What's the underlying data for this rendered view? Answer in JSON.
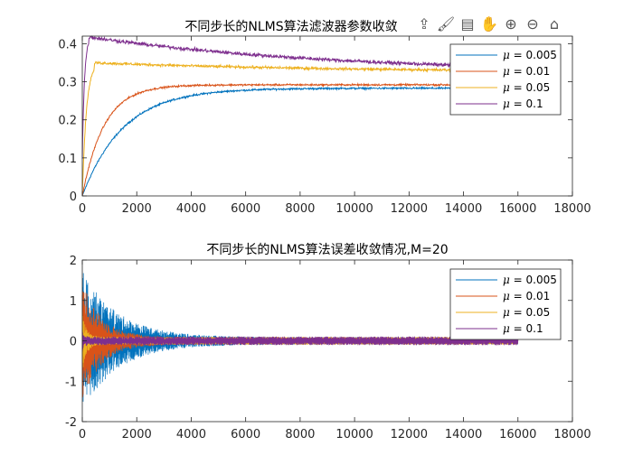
{
  "toolbar": {
    "icons": [
      "export-icon",
      "brush-icon",
      "datatip-icon",
      "pan-icon",
      "zoom-in-icon",
      "zoom-out-icon",
      "home-icon"
    ],
    "glyphs": [
      "⇪",
      "🖌",
      "▤",
      "✋",
      "⊕",
      "⊖",
      "⌂"
    ]
  },
  "colors": {
    "c1": "#0072BD",
    "c2": "#D95319",
    "c3": "#EDB120",
    "c4": "#7E2F8E"
  },
  "chart_data": [
    {
      "type": "line",
      "title": "不同步长的NLMS算法滤波器参数收敛",
      "xlabel": "",
      "ylabel": "",
      "xlim": [
        0,
        18000
      ],
      "ylim": [
        0,
        0.42
      ],
      "xticks": [
        "0",
        "2000",
        "4000",
        "6000",
        "8000",
        "10000",
        "12000",
        "14000",
        "16000",
        "18000"
      ],
      "yticks": [
        "0",
        "0.1",
        "0.2",
        "0.3",
        "0.4"
      ],
      "legend_position": "top-right",
      "series": [
        {
          "name": "μ = 0.005",
          "mu_symbol": "μ",
          "label_rest": " = 0.005",
          "start": 0.0,
          "final": 0.283,
          "tau": 1500,
          "noise": 0.002,
          "x_end": 16000
        },
        {
          "name": "μ = 0.01",
          "mu_symbol": "μ",
          "label_rest": " = 0.01",
          "start": 0.0,
          "final": 0.292,
          "tau": 800,
          "noise": 0.002,
          "x_end": 16000
        },
        {
          "name": "μ = 0.05",
          "mu_symbol": "μ",
          "label_rest": " = 0.05",
          "start": 0.0,
          "peak": 0.35,
          "final": 0.325,
          "tau": 150,
          "noise": 0.003,
          "x_end": 16000
        },
        {
          "name": "μ = 0.1",
          "mu_symbol": "μ",
          "label_rest": " = 0.1",
          "start": 0.1,
          "peak": 0.418,
          "final": 0.322,
          "tau": 80,
          "noise": 0.004,
          "x_end": 16000
        }
      ]
    },
    {
      "type": "line",
      "title": "不同步长的NLMS算法误差收敛情况,M=20",
      "xlabel": "",
      "ylabel": "",
      "xlim": [
        0,
        18000
      ],
      "ylim": [
        -2,
        2
      ],
      "xticks": [
        "0",
        "2000",
        "4000",
        "6000",
        "8000",
        "10000",
        "12000",
        "14000",
        "16000",
        "18000"
      ],
      "yticks": [
        "-2",
        "-1",
        "0",
        "1",
        "2"
      ],
      "legend_position": "top-right",
      "series": [
        {
          "name": "μ = 0.005",
          "mu_symbol": "μ",
          "label_rest": " = 0.005",
          "envelope_start": 1.75,
          "envelope_floor": 0.09,
          "tau": 1300,
          "x_end": 16000
        },
        {
          "name": "μ = 0.01",
          "mu_symbol": "μ",
          "label_rest": " = 0.01",
          "envelope_start": 1.5,
          "envelope_floor": 0.09,
          "tau": 700,
          "x_end": 16000
        },
        {
          "name": "μ = 0.05",
          "mu_symbol": "μ",
          "label_rest": " = 0.05",
          "envelope_start": 0.8,
          "envelope_floor": 0.1,
          "tau": 150,
          "x_end": 16000
        },
        {
          "name": "μ = 0.1",
          "mu_symbol": "μ",
          "label_rest": " = 0.1",
          "envelope_start": 0.3,
          "envelope_floor": 0.11,
          "tau": 60,
          "x_end": 16000
        }
      ]
    }
  ]
}
